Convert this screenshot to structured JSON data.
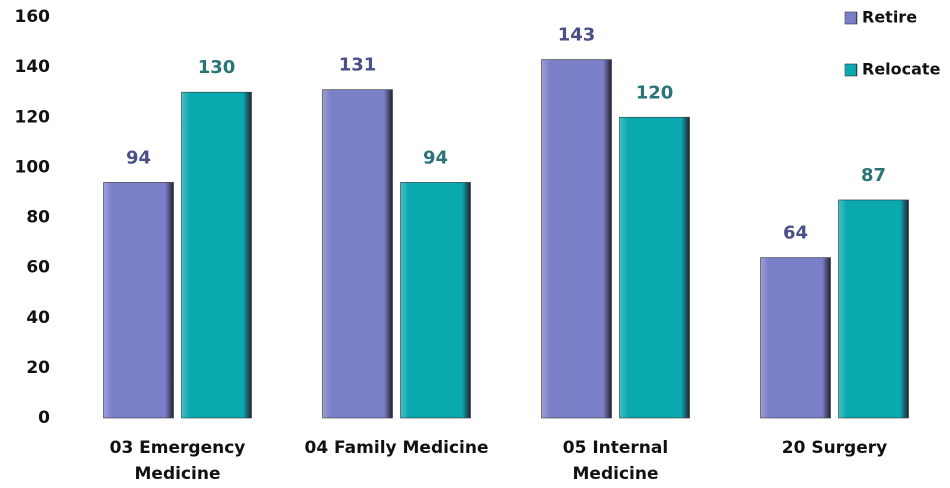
{
  "chart_data": {
    "type": "bar",
    "categories": [
      "03 Emergency Medicine",
      "04 Family Medicine",
      "05 Internal Medicine",
      "20 Surgery"
    ],
    "series": [
      {
        "name": "Retire",
        "color": "#7b7fc8",
        "label_color": "#4a4f8a",
        "values": [
          94,
          131,
          143,
          64
        ]
      },
      {
        "name": "Relocate",
        "color": "#0aa9b0",
        "label_color": "#2a7478",
        "values": [
          130,
          94,
          120,
          87
        ]
      }
    ],
    "ylim": [
      0,
      160
    ],
    "yticks": [
      0,
      20,
      40,
      60,
      80,
      100,
      120,
      140,
      160
    ],
    "grid": false,
    "legend": "top-right"
  }
}
